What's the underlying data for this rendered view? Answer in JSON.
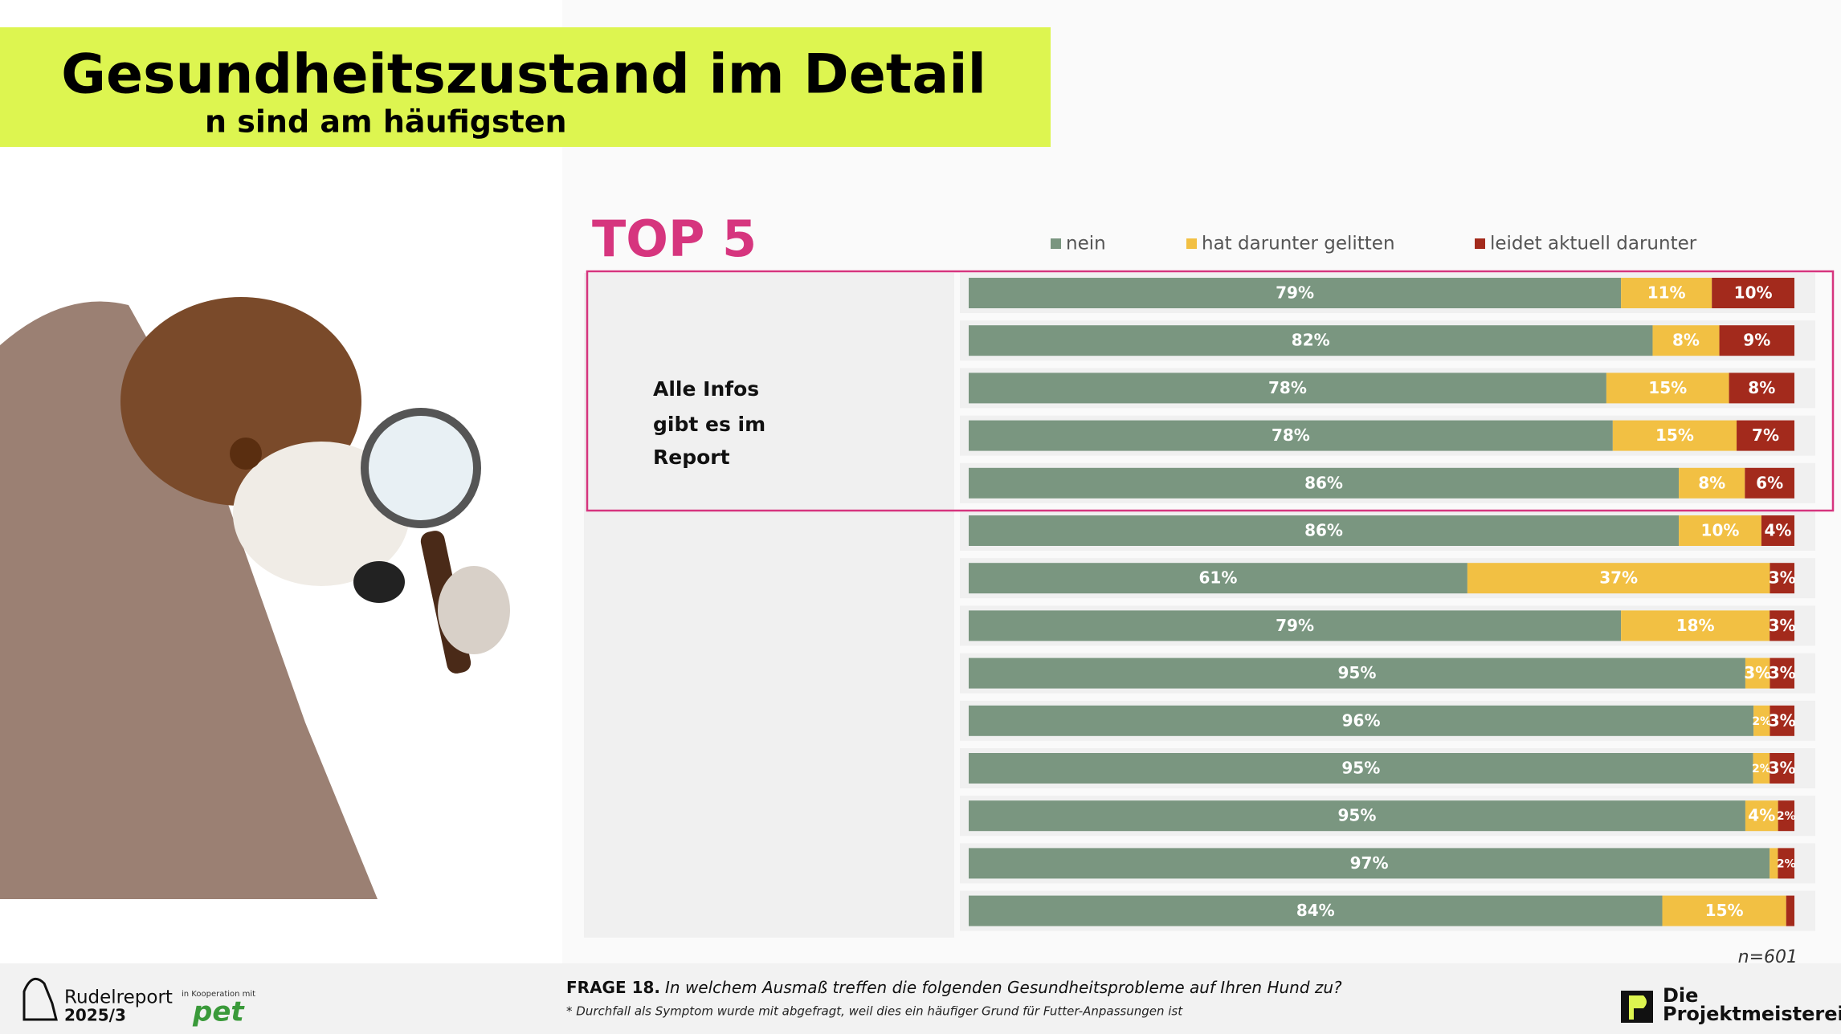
{
  "chart_data": {
    "type": "stacked-bar-horizontal",
    "title": "Gesundheitszustand im Detail",
    "subtitle": "n sind am häufigsten",
    "highlight": "TOP 5",
    "series": [
      {
        "name": "nein",
        "color": "#7a9680",
        "values": [
          79,
          82,
          78,
          78,
          86,
          86,
          61,
          79,
          95,
          96,
          95,
          95,
          97,
          84
        ],
        "value_labels": [
          "79%",
          "82%",
          "78%",
          "78%",
          "86%",
          "86%",
          "61%",
          "79%",
          "95%",
          "96%",
          "95%",
          "95%",
          "97%",
          "84%"
        ]
      },
      {
        "name": "hat darunter gelitten",
        "color": "#f2c043",
        "values": [
          11,
          8,
          15,
          15,
          8,
          10,
          37,
          18,
          3,
          2,
          2,
          4,
          1,
          15
        ],
        "value_labels": [
          "11%",
          "8%",
          "15%",
          "15%",
          "8%",
          "10%",
          "37%",
          "18%",
          "3%",
          "2%",
          "2%",
          "4%",
          null,
          "15%"
        ]
      },
      {
        "name": "leidet aktuell darunter",
        "color": "#a32a1c",
        "values": [
          10,
          9,
          8,
          7,
          6,
          4,
          3,
          3,
          3,
          3,
          3,
          2,
          2,
          1
        ],
        "value_labels": [
          "10%",
          "9%",
          "8%",
          "7%",
          "6%",
          "4%",
          "3%",
          "3%",
          "3%",
          "3%",
          "3%",
          "2%",
          "2%",
          null
        ]
      }
    ],
    "note": "n=601"
  },
  "page": {
    "info": [
      "Alle Infos",
      "gibt es im",
      "Report"
    ],
    "question_label": "FRAGE 18.",
    "question": "In welchem Ausmaß treffen die folgenden Gesundheitsprobleme auf Ihren Hund zu?",
    "footnote": "* Durchfall als Symptom wurde mit abgefragt, weil dies ein häufiger Grund für Futter-Anpassungen ist",
    "brand": [
      "Rudelreport",
      "2025/3"
    ],
    "cooperation": "in Kooperation mit",
    "partner": "pet",
    "company": [
      "Die",
      "Projektmeisterei"
    ]
  }
}
